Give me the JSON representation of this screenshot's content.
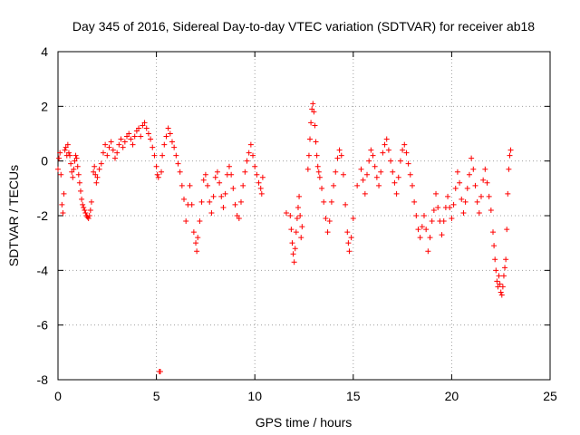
{
  "chart_data": {
    "type": "scatter",
    "title": "Day 345 of 2016, Sidereal Day-to-day VTEC variation (SDTVAR) for receiver ab18",
    "xlabel": "GPS time / hours",
    "ylabel": "SDTVAR / TECUs",
    "xlim": [
      0,
      25
    ],
    "ylim": [
      -8,
      4
    ],
    "xticks": [
      0,
      5,
      10,
      15,
      20,
      25
    ],
    "yticks": [
      -8,
      -6,
      -4,
      -2,
      0,
      2,
      4
    ],
    "grid": true,
    "marker": "+",
    "color": "#ff0000",
    "series": [
      {
        "name": "SDTVAR",
        "points": [
          [
            0.0,
            -0.3
          ],
          [
            0.05,
            0.1
          ],
          [
            0.1,
            0.3
          ],
          [
            0.15,
            -0.5
          ],
          [
            0.2,
            -1.6
          ],
          [
            0.25,
            -1.9
          ],
          [
            0.3,
            -1.2
          ],
          [
            0.35,
            0.4
          ],
          [
            0.4,
            0.5
          ],
          [
            0.45,
            0.2
          ],
          [
            0.5,
            0.6
          ],
          [
            0.55,
            0.3
          ],
          [
            0.6,
            0.2
          ],
          [
            0.65,
            -0.1
          ],
          [
            0.7,
            -0.4
          ],
          [
            0.75,
            -0.6
          ],
          [
            0.8,
            -0.3
          ],
          [
            0.85,
            0.0
          ],
          [
            0.9,
            0.2
          ],
          [
            0.95,
            0.1
          ],
          [
            1.0,
            -0.2
          ],
          [
            1.05,
            -0.5
          ],
          [
            1.1,
            -0.8
          ],
          [
            1.15,
            -1.1
          ],
          [
            1.2,
            -1.4
          ],
          [
            1.25,
            -1.6
          ],
          [
            1.3,
            -1.7
          ],
          [
            1.35,
            -1.8
          ],
          [
            1.4,
            -1.9
          ],
          [
            1.45,
            -2.0
          ],
          [
            1.5,
            -2.05
          ],
          [
            1.55,
            -2.1
          ],
          [
            1.6,
            -2.0
          ],
          [
            1.65,
            -1.8
          ],
          [
            1.7,
            -1.5
          ],
          [
            1.8,
            -0.4
          ],
          [
            1.85,
            -0.2
          ],
          [
            1.9,
            -0.5
          ],
          [
            1.95,
            -0.8
          ],
          [
            2.0,
            -0.6
          ],
          [
            2.1,
            -0.3
          ],
          [
            2.2,
            -0.1
          ],
          [
            2.3,
            0.3
          ],
          [
            2.4,
            0.6
          ],
          [
            2.5,
            0.2
          ],
          [
            2.6,
            0.5
          ],
          [
            2.7,
            0.7
          ],
          [
            2.8,
            0.4
          ],
          [
            2.9,
            0.1
          ],
          [
            3.0,
            0.3
          ],
          [
            3.1,
            0.6
          ],
          [
            3.2,
            0.8
          ],
          [
            3.3,
            0.5
          ],
          [
            3.4,
            0.7
          ],
          [
            3.5,
            0.9
          ],
          [
            3.6,
            1.0
          ],
          [
            3.7,
            0.8
          ],
          [
            3.8,
            0.6
          ],
          [
            3.9,
            0.9
          ],
          [
            4.0,
            1.1
          ],
          [
            4.1,
            1.2
          ],
          [
            4.2,
            0.9
          ],
          [
            4.3,
            1.3
          ],
          [
            4.4,
            1.4
          ],
          [
            4.5,
            1.2
          ],
          [
            4.6,
            1.0
          ],
          [
            4.7,
            0.8
          ],
          [
            4.8,
            0.5
          ],
          [
            4.9,
            0.2
          ],
          [
            5.0,
            -0.2
          ],
          [
            5.05,
            -0.5
          ],
          [
            5.1,
            -0.6
          ],
          [
            5.15,
            -7.7
          ],
          [
            5.2,
            -7.7
          ],
          [
            5.25,
            -0.4
          ],
          [
            5.3,
            0.2
          ],
          [
            5.4,
            0.6
          ],
          [
            5.5,
            0.9
          ],
          [
            5.6,
            1.2
          ],
          [
            5.7,
            1.0
          ],
          [
            5.8,
            0.7
          ],
          [
            5.9,
            0.5
          ],
          [
            6.0,
            0.2
          ],
          [
            6.1,
            -0.1
          ],
          [
            6.2,
            -0.4
          ],
          [
            6.3,
            -0.9
          ],
          [
            6.4,
            -1.4
          ],
          [
            6.5,
            -2.2
          ],
          [
            6.6,
            -1.6
          ],
          [
            6.7,
            -0.9
          ],
          [
            6.8,
            -1.6
          ],
          [
            6.9,
            -2.6
          ],
          [
            7.0,
            -3.0
          ],
          [
            7.05,
            -3.3
          ],
          [
            7.1,
            -2.8
          ],
          [
            7.2,
            -2.2
          ],
          [
            7.3,
            -1.5
          ],
          [
            7.4,
            -0.7
          ],
          [
            7.5,
            -0.5
          ],
          [
            7.6,
            -0.9
          ],
          [
            7.7,
            -1.5
          ],
          [
            7.8,
            -1.9
          ],
          [
            7.9,
            -1.3
          ],
          [
            8.0,
            -0.6
          ],
          [
            8.1,
            -0.4
          ],
          [
            8.2,
            -0.8
          ],
          [
            8.3,
            -1.3
          ],
          [
            8.4,
            -1.7
          ],
          [
            8.5,
            -1.2
          ],
          [
            8.6,
            -0.5
          ],
          [
            8.7,
            -0.2
          ],
          [
            8.8,
            -0.5
          ],
          [
            8.9,
            -1.0
          ],
          [
            9.0,
            -1.6
          ],
          [
            9.1,
            -2.0
          ],
          [
            9.2,
            -2.1
          ],
          [
            9.3,
            -1.5
          ],
          [
            9.4,
            -0.9
          ],
          [
            9.5,
            -0.4
          ],
          [
            9.6,
            0.0
          ],
          [
            9.7,
            0.3
          ],
          [
            9.8,
            0.6
          ],
          [
            9.9,
            0.2
          ],
          [
            10.0,
            -0.2
          ],
          [
            10.1,
            -0.5
          ],
          [
            10.2,
            -0.8
          ],
          [
            10.3,
            -1.0
          ],
          [
            10.35,
            -1.2
          ],
          [
            10.4,
            -0.6
          ],
          [
            11.6,
            -1.9
          ],
          [
            11.8,
            -2.0
          ],
          [
            11.85,
            -2.5
          ],
          [
            11.9,
            -3.0
          ],
          [
            11.95,
            -3.4
          ],
          [
            12.0,
            -3.7
          ],
          [
            12.05,
            -3.2
          ],
          [
            12.1,
            -2.6
          ],
          [
            12.15,
            -2.1
          ],
          [
            12.2,
            -1.7
          ],
          [
            12.25,
            -1.3
          ],
          [
            12.3,
            -2.0
          ],
          [
            12.35,
            -2.8
          ],
          [
            12.4,
            -2.4
          ],
          [
            12.7,
            -0.3
          ],
          [
            12.75,
            0.2
          ],
          [
            12.8,
            0.8
          ],
          [
            12.85,
            1.4
          ],
          [
            12.9,
            1.9
          ],
          [
            12.95,
            2.1
          ],
          [
            13.0,
            1.8
          ],
          [
            13.05,
            1.3
          ],
          [
            13.1,
            0.7
          ],
          [
            13.15,
            0.2
          ],
          [
            13.2,
            -0.2
          ],
          [
            13.25,
            -0.4
          ],
          [
            13.3,
            -0.6
          ],
          [
            13.4,
            -1.0
          ],
          [
            13.5,
            -1.5
          ],
          [
            13.6,
            -2.1
          ],
          [
            13.7,
            -2.6
          ],
          [
            13.8,
            -2.2
          ],
          [
            13.9,
            -1.5
          ],
          [
            14.0,
            -0.9
          ],
          [
            14.1,
            -0.4
          ],
          [
            14.2,
            0.1
          ],
          [
            14.3,
            0.4
          ],
          [
            14.4,
            0.2
          ],
          [
            14.5,
            -0.5
          ],
          [
            14.6,
            -1.6
          ],
          [
            14.7,
            -2.6
          ],
          [
            14.75,
            -3.0
          ],
          [
            14.8,
            -3.3
          ],
          [
            14.9,
            -2.8
          ],
          [
            15.0,
            -2.1
          ],
          [
            15.2,
            -0.9
          ],
          [
            15.4,
            -0.3
          ],
          [
            15.5,
            -0.7
          ],
          [
            15.6,
            -1.2
          ],
          [
            15.7,
            -0.5
          ],
          [
            15.8,
            0.0
          ],
          [
            15.9,
            0.4
          ],
          [
            16.0,
            0.2
          ],
          [
            16.1,
            -0.2
          ],
          [
            16.2,
            -0.6
          ],
          [
            16.3,
            -0.9
          ],
          [
            16.4,
            -0.4
          ],
          [
            16.5,
            0.3
          ],
          [
            16.6,
            0.6
          ],
          [
            16.7,
            0.8
          ],
          [
            16.8,
            0.4
          ],
          [
            16.9,
            0.0
          ],
          [
            17.0,
            -0.4
          ],
          [
            17.1,
            -0.8
          ],
          [
            17.2,
            -1.2
          ],
          [
            17.3,
            -0.6
          ],
          [
            17.4,
            0.0
          ],
          [
            17.5,
            0.4
          ],
          [
            17.6,
            0.6
          ],
          [
            17.7,
            0.3
          ],
          [
            17.8,
            -0.1
          ],
          [
            17.9,
            -0.5
          ],
          [
            18.0,
            -0.9
          ],
          [
            18.1,
            -1.5
          ],
          [
            18.2,
            -2.0
          ],
          [
            18.3,
            -2.5
          ],
          [
            18.4,
            -2.8
          ],
          [
            18.5,
            -2.4
          ],
          [
            18.6,
            -2.0
          ],
          [
            18.7,
            -2.5
          ],
          [
            18.8,
            -3.3
          ],
          [
            18.9,
            -2.8
          ],
          [
            19.0,
            -2.2
          ],
          [
            19.1,
            -1.8
          ],
          [
            19.2,
            -1.2
          ],
          [
            19.3,
            -1.7
          ],
          [
            19.4,
            -2.2
          ],
          [
            19.5,
            -2.7
          ],
          [
            19.6,
            -2.2
          ],
          [
            19.7,
            -1.7
          ],
          [
            19.8,
            -1.3
          ],
          [
            19.9,
            -1.7
          ],
          [
            20.0,
            -2.1
          ],
          [
            20.1,
            -1.6
          ],
          [
            20.2,
            -1.0
          ],
          [
            20.3,
            -0.4
          ],
          [
            20.4,
            -0.8
          ],
          [
            20.5,
            -1.4
          ],
          [
            20.6,
            -1.9
          ],
          [
            20.7,
            -1.5
          ],
          [
            20.8,
            -1.0
          ],
          [
            20.9,
            -0.5
          ],
          [
            21.0,
            0.1
          ],
          [
            21.1,
            -0.3
          ],
          [
            21.2,
            -0.9
          ],
          [
            21.3,
            -1.5
          ],
          [
            21.4,
            -1.9
          ],
          [
            21.5,
            -1.3
          ],
          [
            21.6,
            -0.7
          ],
          [
            21.7,
            -0.3
          ],
          [
            21.8,
            -0.8
          ],
          [
            21.9,
            -1.3
          ],
          [
            22.0,
            -1.8
          ],
          [
            22.1,
            -2.6
          ],
          [
            22.15,
            -3.1
          ],
          [
            22.2,
            -3.6
          ],
          [
            22.25,
            -4.0
          ],
          [
            22.3,
            -4.4
          ],
          [
            22.35,
            -4.6
          ],
          [
            22.4,
            -4.2
          ],
          [
            22.45,
            -4.5
          ],
          [
            22.5,
            -4.8
          ],
          [
            22.55,
            -4.9
          ],
          [
            22.6,
            -4.6
          ],
          [
            22.65,
            -4.2
          ],
          [
            22.7,
            -3.9
          ],
          [
            22.75,
            -3.6
          ],
          [
            22.8,
            -2.5
          ],
          [
            22.85,
            -1.2
          ],
          [
            22.9,
            -0.3
          ],
          [
            22.95,
            0.2
          ],
          [
            23.0,
            0.4
          ]
        ]
      }
    ]
  }
}
